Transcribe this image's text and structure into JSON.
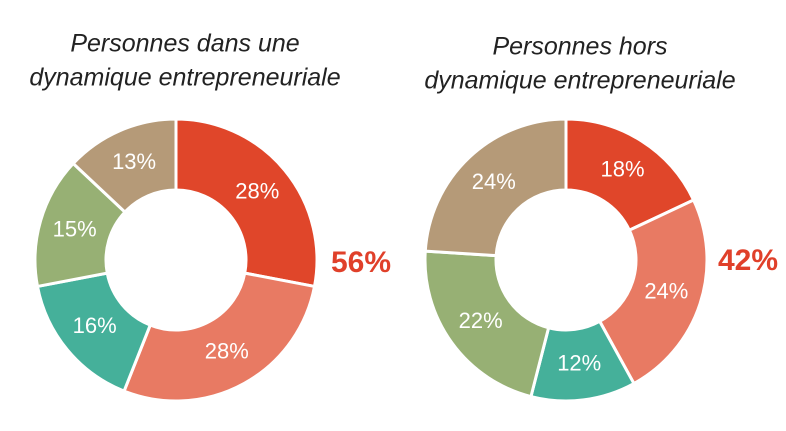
{
  "chart_data": [
    {
      "type": "pie",
      "title": [
        "Personnes dans une",
        "dynamique entrepreneuriale"
      ],
      "values": [
        28,
        28,
        16,
        15,
        13
      ],
      "value_labels": [
        "28%",
        "28%",
        "16%",
        "15%",
        "13%"
      ],
      "colors": [
        "#e0462a",
        "#e87a63",
        "#45b09a",
        "#97b074",
        "#b59a78"
      ],
      "annotation": "56%",
      "annotation_color": "#e0402a"
    },
    {
      "type": "pie",
      "title": [
        "Personnes hors",
        "dynamique entrepreneuriale"
      ],
      "values": [
        18,
        24,
        12,
        22,
        24
      ],
      "value_labels": [
        "18%",
        "24%",
        "12%",
        "22%",
        "24%"
      ],
      "colors": [
        "#e0462a",
        "#e87a63",
        "#45b09a",
        "#97b074",
        "#b59a78"
      ],
      "annotation": "42%",
      "annotation_color": "#e0402a"
    }
  ]
}
